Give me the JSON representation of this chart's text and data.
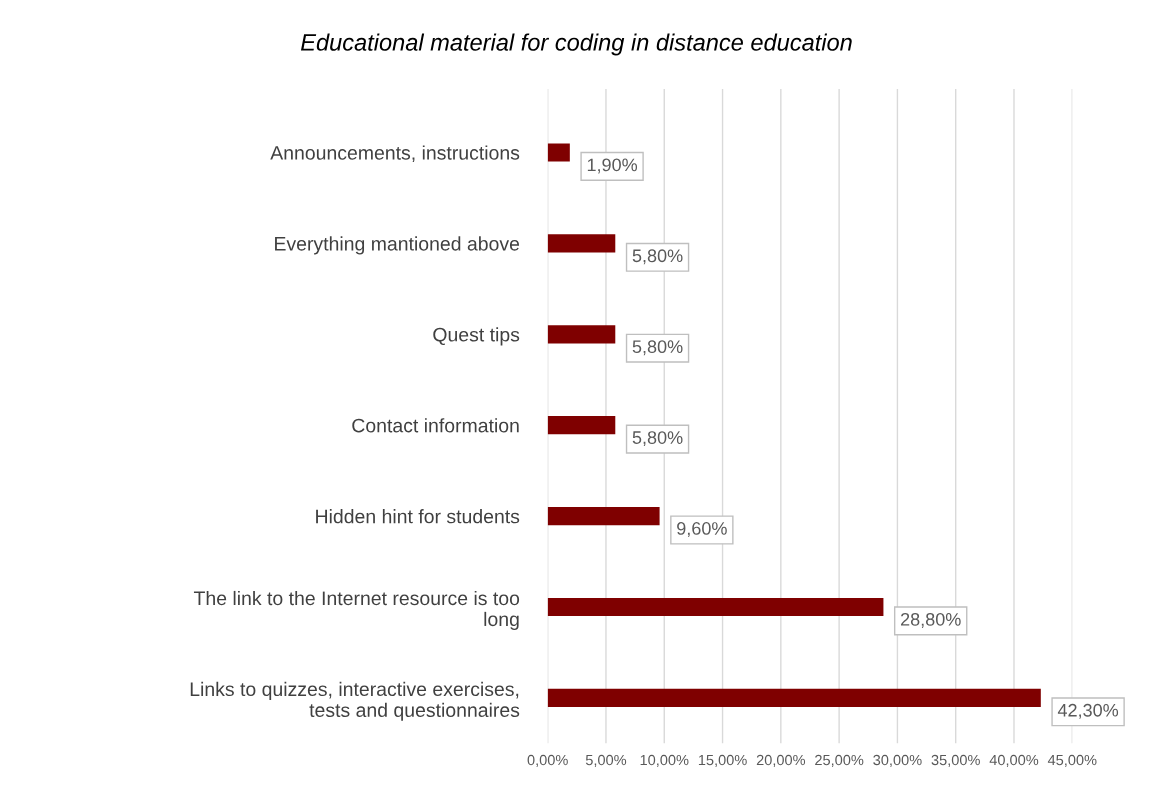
{
  "chart_data": {
    "type": "bar",
    "orientation": "horizontal",
    "title": "Educational material for coding in distance education",
    "categories": [
      "Announcements, instructions",
      "Everything mantioned above",
      "Quest tips",
      "Contact information",
      "Hidden hint for students",
      "The link to the Internet resource is too\nlong",
      "Links to quizzes, interactive exercises,\ntests and questionnaires"
    ],
    "values": [
      1.9,
      5.8,
      5.8,
      5.8,
      9.6,
      28.8,
      42.3
    ],
    "value_labels": [
      "1,90%",
      "5,80%",
      "5,80%",
      "5,80%",
      "9,60%",
      "28,80%",
      "42,30%"
    ],
    "color": "#7f0000",
    "xlim": [
      0,
      45
    ],
    "xticks": [
      {
        "value": 0,
        "label": "0,00%"
      },
      {
        "value": 5,
        "label": "5,00%"
      },
      {
        "value": 10,
        "label": "10,00%"
      },
      {
        "value": 15,
        "label": "15,00%"
      },
      {
        "value": 20,
        "label": "20,00%"
      },
      {
        "value": 25,
        "label": "25,00%"
      },
      {
        "value": 30,
        "label": "30,00%"
      },
      {
        "value": 35,
        "label": "35,00%"
      },
      {
        "value": 40,
        "label": "40,00%"
      },
      {
        "value": 45,
        "label": "45,00%"
      }
    ],
    "grid": "x",
    "legend": false
  }
}
